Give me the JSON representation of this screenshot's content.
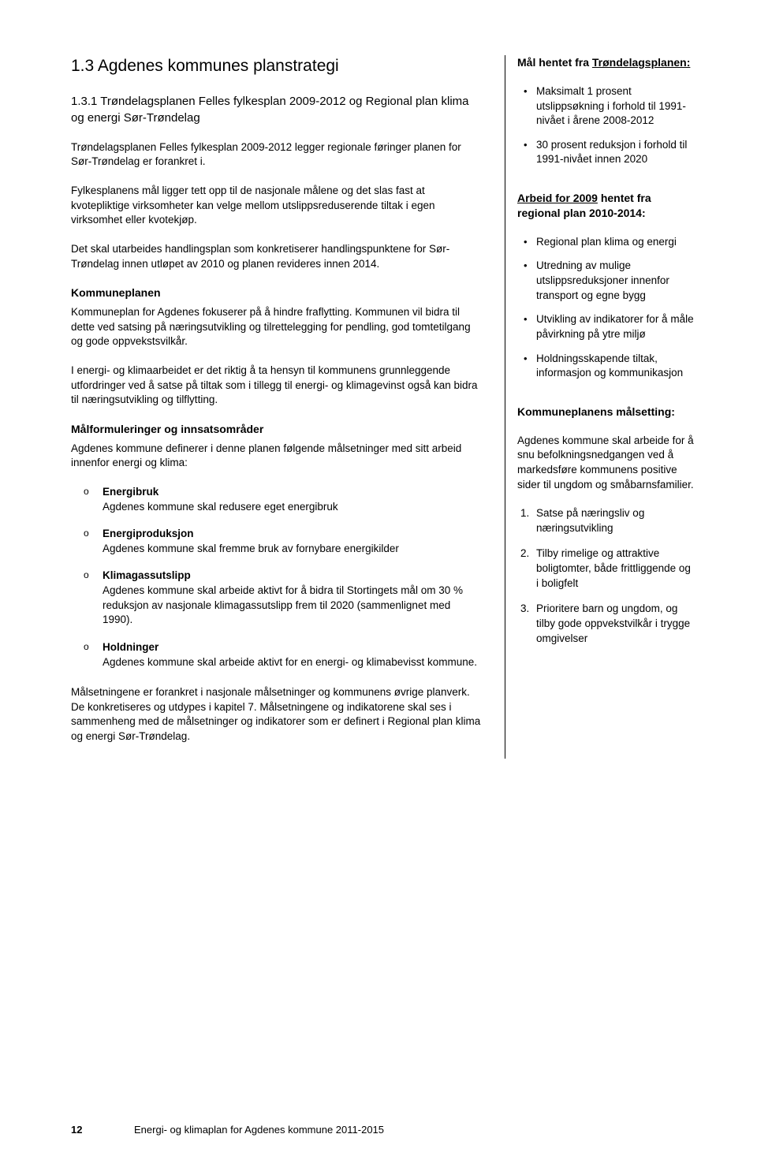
{
  "colors": {
    "text": "#000000",
    "bg": "#ffffff",
    "rule": "#000000"
  },
  "main": {
    "h1": "1.3 Agdenes kommunes planstrategi",
    "h2": "1.3.1 Trøndelagsplanen Felles fylkesplan 2009-2012 og Regional plan klima og energi Sør-Trøndelag",
    "p1": "Trøndelagsplanen Felles fylkesplan 2009-2012 legger regionale føringer planen for Sør-Trøndelag er forankret i.",
    "p2": "Fylkesplanens mål ligger tett opp til de nasjonale målene og det slas fast at kvotepliktige virksomheter kan velge mellom utslippsreduserende tiltak i egen virksomhet eller kvotekjøp.",
    "p3": "Det skal utarbeides handlingsplan som konkretiserer handlingspunktene for Sør-Trøndelag innen utløpet av 2010 og planen revideres innen 2014.",
    "h_kp": "Kommuneplanen",
    "p4": "Kommuneplan for Agdenes fokuserer på å hindre fraflytting. Kommunen vil bidra til dette ved satsing på næringsutvikling og tilrettelegging for pendling, god tomtetilgang og gode oppvekstsvilkår.",
    "p5": "I energi- og klimaarbeidet er det riktig å ta hensyn til kommunens grunnleggende utfordringer ved å satse på tiltak som i tillegg til energi- og klimagevinst også kan bidra til næringsutvikling og tilflytting.",
    "h_mf": "Målformuleringer og innsatsområder",
    "p6": "Agdenes kommune definerer i denne planen følgende målsetninger med sitt arbeid innenfor energi og klima:",
    "list": [
      {
        "t": "Energibruk",
        "d": "Agdenes kommune skal redusere eget energibruk"
      },
      {
        "t": "Energiproduksjon",
        "d": "Agdenes kommune skal fremme bruk av fornybare energikilder"
      },
      {
        "t": "Klimagassutslipp",
        "d": "Agdenes kommune skal arbeide aktivt for å bidra til Stortingets mål om 30 % reduksjon av nasjonale klimagassutslipp frem til 2020 (sammenlignet med 1990)."
      },
      {
        "t": "Holdninger",
        "d": "Agdenes kommune skal arbeide aktivt for en energi- og klimabevisst kommune."
      }
    ],
    "p7": "Målsetningene er forankret i nasjonale målsetninger og kommunens øvrige planverk. De konkretiseres og utdypes i kapitel 7. Målsetningene og indikatorene skal ses i sammenheng med de målsetninger og indikatorer som er definert i Regional plan klima og energi Sør-Trøndelag."
  },
  "side": {
    "h1_prefix": "Mål hentet fra ",
    "h1_u": "Trøndelagsplanen:",
    "b1": [
      "Maksimalt 1 prosent utslippsøkning i forhold til 1991-nivået i årene 2008-2012",
      "30 prosent reduksjon i forhold til 1991-nivået innen 2020"
    ],
    "h2_u": "Arbeid for 2009",
    "h2_rest": " hentet fra regional plan 2010-2014:",
    "b2": [
      "Regional plan klima og energi",
      "Utredning av mulige utslippsreduksjoner innenfor transport og egne bygg",
      "Utvikling av indikatorer for å måle påvirkning på ytre miljø",
      "Holdningsskapende tiltak, informasjon og kommunikasjon"
    ],
    "h3": "Kommuneplanens målsetting:",
    "p1": "Agdenes kommune skal arbeide for å snu befolkningsnedgangen ved å markedsføre kommunens positive sider til ungdom og småbarnsfamilier.",
    "num": [
      "Satse på næringsliv og næringsutvikling",
      "Tilby rimelige og attraktive boligtomter, både frittliggende og i boligfelt",
      "Prioritere barn og ungdom, og tilby gode oppvekstvilkår i trygge omgivelser"
    ]
  },
  "footer": {
    "page": "12",
    "title": "Energi- og klimaplan for Agdenes kommune 2011-2015"
  }
}
